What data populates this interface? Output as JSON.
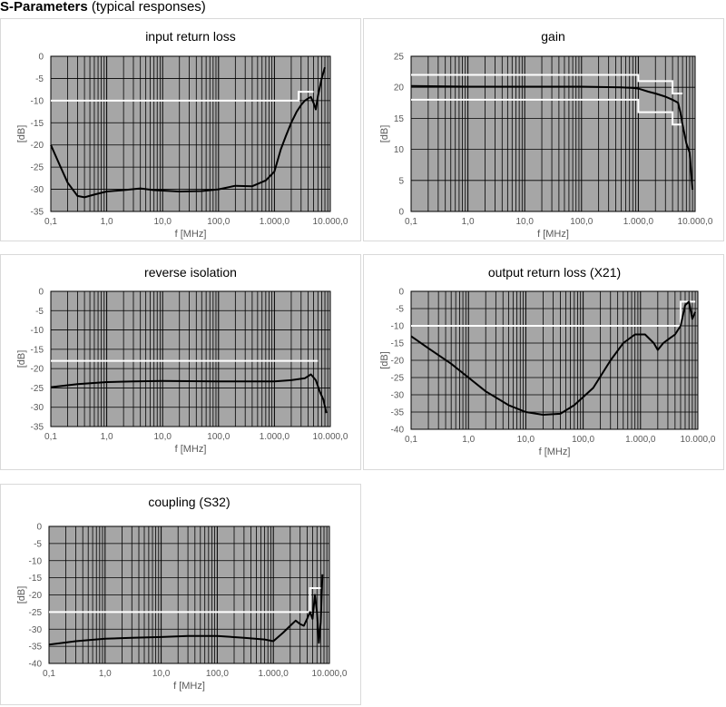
{
  "page": {
    "heading_bold": "S-Parameters",
    "heading_rest": " (typical responses)"
  },
  "colors": {
    "plot_bg": "#a6a6a6",
    "grid": "#000000",
    "trace": "#000000",
    "limit": "#ffffff"
  },
  "chart_data": [
    {
      "type": "line",
      "title": "input return loss",
      "xlabel": "f [MHz]",
      "ylabel": "[dB]",
      "x_scale": "log",
      "xlim": [
        0.1,
        10000
      ],
      "xticks": [
        "0,1",
        "1,0",
        "10,0",
        "100,0",
        "1.000,0",
        "10.000,0"
      ],
      "ylim": [
        -35,
        0
      ],
      "ystep": 5,
      "grid": true,
      "series": [
        {
          "values": [
            [
              0.1,
              -20
            ],
            [
              0.15,
              -25
            ],
            [
              0.2,
              -28.5
            ],
            [
              0.3,
              -31.5
            ],
            [
              0.4,
              -31.8
            ],
            [
              0.6,
              -31.2
            ],
            [
              1,
              -30.5
            ],
            [
              2,
              -30.2
            ],
            [
              4,
              -29.8
            ],
            [
              7,
              -30.2
            ],
            [
              20,
              -30.5
            ],
            [
              50,
              -30.4
            ],
            [
              100,
              -30
            ],
            [
              200,
              -29.2
            ],
            [
              400,
              -29.3
            ],
            [
              700,
              -28
            ],
            [
              1000,
              -26
            ],
            [
              1300,
              -21
            ],
            [
              1600,
              -18
            ],
            [
              2000,
              -15
            ],
            [
              2500,
              -12.5
            ],
            [
              3000,
              -11
            ],
            [
              3500,
              -10
            ],
            [
              4000,
              -9.5
            ],
            [
              4500,
              -9.2
            ],
            [
              5000,
              -10.5
            ],
            [
              5500,
              -12
            ],
            [
              6000,
              -9
            ],
            [
              7000,
              -5
            ],
            [
              8000,
              -2.5
            ]
          ]
        }
      ],
      "limits": [
        {
          "values": [
            [
              0.1,
              -10
            ],
            [
              2700,
              -10
            ],
            [
              2700,
              -8
            ],
            [
              5000,
              -8
            ]
          ]
        }
      ]
    },
    {
      "type": "line",
      "title": "gain",
      "xlabel": "f [MHz]",
      "ylabel": "[dB]",
      "x_scale": "log",
      "xlim": [
        0.1,
        10000
      ],
      "xticks": [
        "0,1",
        "1,0",
        "10,0",
        "100,0",
        "1.000,0",
        "10.000,0"
      ],
      "ylim": [
        0,
        25
      ],
      "ystep": 5,
      "grid": true,
      "series": [
        {
          "values": [
            [
              0.1,
              20.2
            ],
            [
              1,
              20.1
            ],
            [
              10,
              20.1
            ],
            [
              100,
              20.1
            ],
            [
              500,
              20
            ],
            [
              800,
              19.9
            ],
            [
              1000,
              19.8
            ],
            [
              1500,
              19.3
            ],
            [
              2000,
              19
            ],
            [
              3000,
              18.5
            ],
            [
              4000,
              18
            ],
            [
              5000,
              17.5
            ],
            [
              5500,
              16
            ],
            [
              6000,
              14
            ],
            [
              7000,
              11
            ],
            [
              8000,
              9.5
            ],
            [
              9000,
              3.5
            ]
          ]
        }
      ],
      "limits": [
        {
          "values": [
            [
              0.1,
              22
            ],
            [
              1000,
              22
            ],
            [
              1000,
              21
            ],
            [
              4000,
              21
            ],
            [
              4000,
              19
            ],
            [
              6000,
              19
            ]
          ]
        },
        {
          "values": [
            [
              0.1,
              18
            ],
            [
              1000,
              18
            ],
            [
              1000,
              16
            ],
            [
              4000,
              16
            ],
            [
              4000,
              14
            ],
            [
              6000,
              14
            ]
          ]
        }
      ]
    },
    {
      "type": "line",
      "title": "reverse isolation",
      "xlabel": "f [MHz]",
      "ylabel": "[dB]",
      "x_scale": "log",
      "xlim": [
        0.1,
        10000
      ],
      "xticks": [
        "0,1",
        "1,0",
        "10,0",
        "100,0",
        "1.000,0",
        "10.000,0"
      ],
      "ylim": [
        -35,
        0
      ],
      "ystep": 5,
      "grid": true,
      "series": [
        {
          "values": [
            [
              0.1,
              -24.8
            ],
            [
              0.3,
              -24
            ],
            [
              1,
              -23.5
            ],
            [
              3,
              -23.3
            ],
            [
              10,
              -23.2
            ],
            [
              100,
              -23.3
            ],
            [
              1000,
              -23.3
            ],
            [
              2000,
              -23
            ],
            [
              3500,
              -22.5
            ],
            [
              4500,
              -21.5
            ],
            [
              5500,
              -23
            ],
            [
              6500,
              -26
            ],
            [
              7500,
              -28
            ],
            [
              8500,
              -31.5
            ]
          ]
        }
      ],
      "limits": [
        {
          "values": [
            [
              0.1,
              -18
            ],
            [
              6000,
              -18
            ]
          ]
        }
      ]
    },
    {
      "type": "line",
      "title": "output return loss (X21)",
      "xlabel": "f [MHz]",
      "ylabel": "[dB]",
      "x_scale": "log",
      "xlim": [
        0.1,
        10000
      ],
      "xticks": [
        "0,1",
        "1,0",
        "10,0",
        "100,0",
        "1.000,0",
        "10.000,0"
      ],
      "ylim": [
        -40,
        0
      ],
      "ystep": 5,
      "grid": true,
      "series": [
        {
          "values": [
            [
              0.1,
              -13
            ],
            [
              0.2,
              -16.5
            ],
            [
              0.5,
              -21
            ],
            [
              1,
              -25
            ],
            [
              2,
              -29
            ],
            [
              5,
              -33
            ],
            [
              10,
              -35
            ],
            [
              20,
              -35.8
            ],
            [
              40,
              -35.5
            ],
            [
              70,
              -33
            ],
            [
              150,
              -28
            ],
            [
              300,
              -20
            ],
            [
              500,
              -15
            ],
            [
              800,
              -12.5
            ],
            [
              1200,
              -12.5
            ],
            [
              1700,
              -15
            ],
            [
              2000,
              -17
            ],
            [
              2500,
              -15
            ],
            [
              3000,
              -14
            ],
            [
              4000,
              -12.5
            ],
            [
              5000,
              -10
            ],
            [
              6000,
              -4
            ],
            [
              7000,
              -3
            ],
            [
              8000,
              -8
            ],
            [
              9000,
              -6
            ]
          ]
        }
      ],
      "limits": [
        {
          "values": [
            [
              0.1,
              -10
            ],
            [
              5000,
              -10
            ],
            [
              5000,
              -3
            ],
            [
              9000,
              -3
            ]
          ]
        }
      ]
    },
    {
      "type": "line",
      "title": "coupling (S32)",
      "xlabel": "f [MHz]",
      "ylabel": "[dB]",
      "x_scale": "log",
      "xlim": [
        0.1,
        10000
      ],
      "xticks": [
        "0,1",
        "1,0",
        "10,0",
        "100,0",
        "1.000,0",
        "10.000,0"
      ],
      "ylim": [
        -40,
        0
      ],
      "ystep": 5,
      "grid": true,
      "series": [
        {
          "values": [
            [
              0.1,
              -34.5
            ],
            [
              0.3,
              -33.5
            ],
            [
              1,
              -32.8
            ],
            [
              3,
              -32.5
            ],
            [
              10,
              -32.3
            ],
            [
              30,
              -32
            ],
            [
              100,
              -32
            ],
            [
              300,
              -32.5
            ],
            [
              700,
              -33
            ],
            [
              1000,
              -33.5
            ],
            [
              1500,
              -31
            ],
            [
              2000,
              -29
            ],
            [
              2500,
              -27.5
            ],
            [
              3000,
              -28.5
            ],
            [
              3500,
              -29
            ],
            [
              4000,
              -27
            ],
            [
              4500,
              -25
            ],
            [
              5000,
              -27
            ],
            [
              5500,
              -20
            ],
            [
              6000,
              -25
            ],
            [
              6500,
              -34
            ],
            [
              7000,
              -28
            ],
            [
              7500,
              -14
            ]
          ]
        }
      ],
      "limits": [
        {
          "values": [
            [
              0.1,
              -25
            ],
            [
              4500,
              -25
            ],
            [
              4500,
              -18
            ],
            [
              7000,
              -18
            ]
          ]
        }
      ]
    }
  ]
}
